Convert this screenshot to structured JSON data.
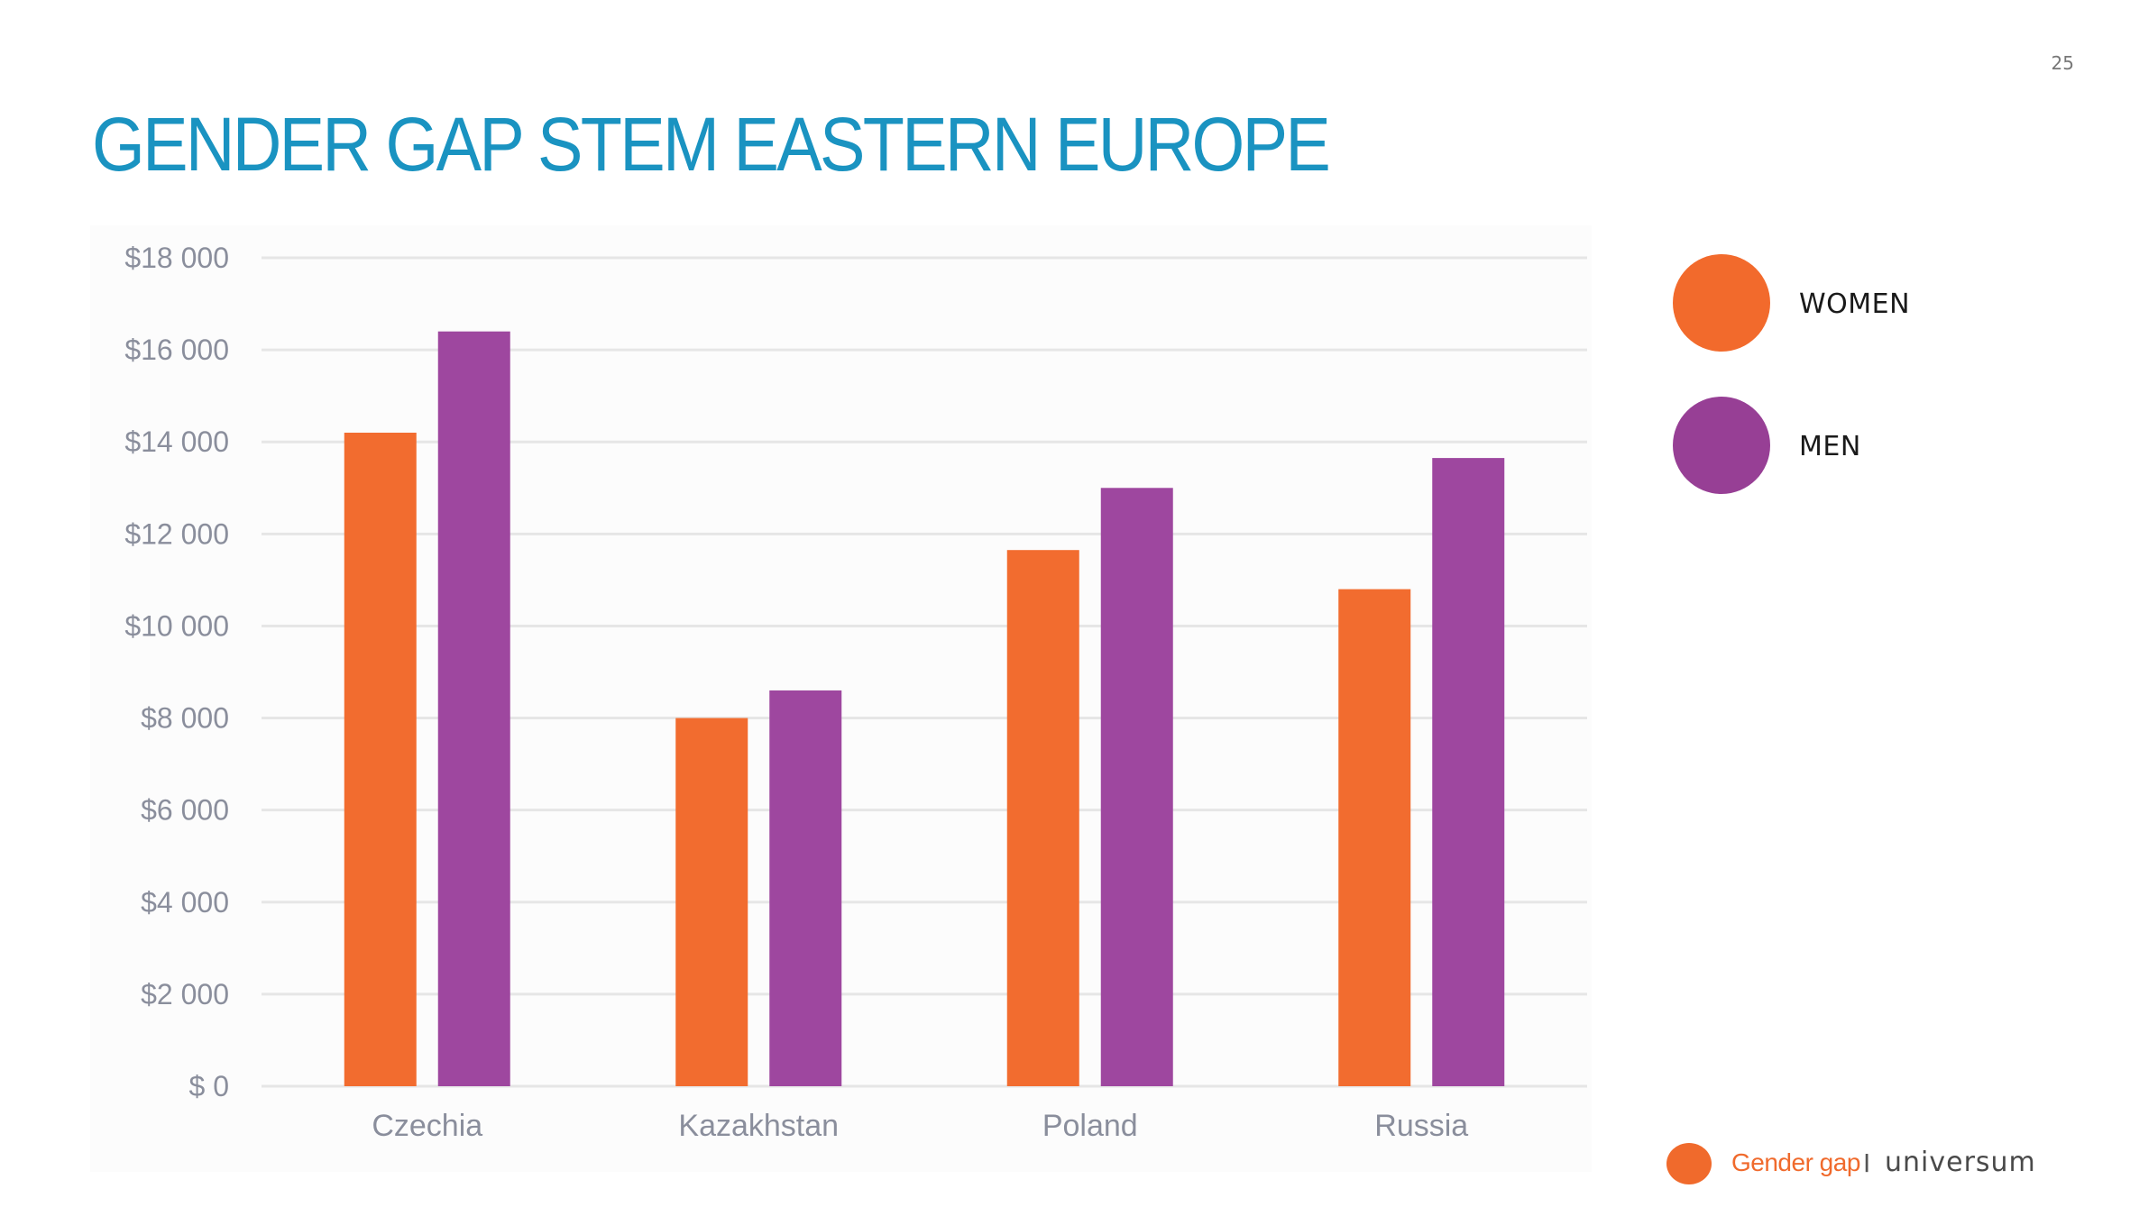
{
  "page_number": "25",
  "title": "GENDER GAP STEM EASTERN EUROPE",
  "colors": {
    "title": "#1a93c1",
    "women": "#f26c2f",
    "men": "#9e479f",
    "legend_women": "#f26a2c",
    "legend_men": "#973f95",
    "grid": "#e6e6e6",
    "axis_text": "#8a8e9c",
    "footer_accent": "#f06a2c"
  },
  "legend": {
    "items": [
      {
        "label": "WOMEN",
        "color": "#f26a2c"
      },
      {
        "label": "MEN",
        "color": "#973f95"
      }
    ]
  },
  "chart_data": {
    "type": "bar",
    "categories": [
      "Czechia",
      "Kazakhstan",
      "Poland",
      "Russia"
    ],
    "series": [
      {
        "name": "WOMEN",
        "values": [
          14200,
          8000,
          11650,
          10800
        ]
      },
      {
        "name": "MEN",
        "values": [
          16400,
          8600,
          13000,
          13650
        ]
      }
    ],
    "ylim": [
      0,
      18000
    ],
    "yticks": [
      0,
      2000,
      4000,
      6000,
      8000,
      10000,
      12000,
      14000,
      16000,
      18000
    ],
    "ytick_labels": [
      "$ 0",
      "$2 000",
      "$4 000",
      "$6 000",
      "$8 000",
      "$10 000",
      "$12 000",
      "$14 000",
      "$16 000",
      "$18 000"
    ],
    "grid": true,
    "legend_position": "right"
  },
  "footer": {
    "section": "Gender gap",
    "separator": "I",
    "brand": "universum"
  }
}
